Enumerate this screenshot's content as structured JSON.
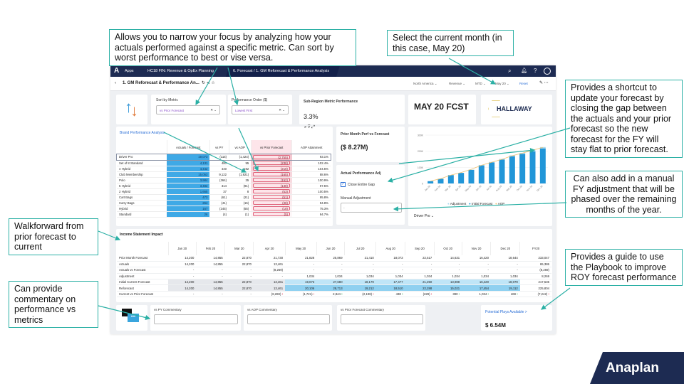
{
  "callouts": {
    "narrow_focus": "Allows you to narrow your focus by analyzing how your actuals performed against a specific metric. Can sort by worst performance to best or vise versa.",
    "current_month": "Select the current month (in this case, May 20)",
    "shortcut": "Provides a shortcut to update your forecast by closing the gap between the actuals and your prior forecast so the new forecast for the FY will stay flat to prior forecast.",
    "manual_adj": "Can also add in a manual FY adjustment that will be phased over the remaining months of the year.",
    "walkforward": "Walkforward from prior forecast to current",
    "commentary": "Can provide commentary on performance vs metrics",
    "playbook": "Provides a guide to use the Playbook to improve ROY forecast performance"
  },
  "nav": {
    "apps": "Apps",
    "model": "HC18 FIN: Revenue & OpEx Planning",
    "page": "6. Forecast / 1. GM Reforecast & Performance Analysis"
  },
  "header": {
    "title": "1. GM Reforecast & Performance An...",
    "filters": [
      "North America",
      "Revenue",
      "MTD",
      "May 20"
    ],
    "reset": "Reset"
  },
  "cards": {
    "sort_label": "Sort by Metric",
    "sort_value": "vs Prior Forecast",
    "order_label": "Performance Order ($)",
    "order_value": "Lowest First",
    "subregion_label": "Sub-Region Metric Performance",
    "subregion_value": "3.3%",
    "fcst": "MAY 20 FCST",
    "logo": "HALLAWAY",
    "prior_label": "Prior Month Perf vs Forecast",
    "prior_value": "($ 8.27M)",
    "adj_title": "Actual Performance Adj",
    "close_gap": "Close Entire Gap",
    "manual_label": "Manual Adjustment",
    "manual_value": "-",
    "driver": "Driver Pro"
  },
  "brand": {
    "title": "Brand Performance Analysis",
    "columns": [
      "Actuals / Forecast",
      "vs PY",
      "vs AOP",
      "vs Prior Forecast",
      "AOP Attainment"
    ],
    "rows": [
      [
        "Driver Pro",
        "19,073",
        "(115)",
        "(1,424)",
        "(2,755)",
        "93.1%"
      ],
      [
        "Set of 8 Standard",
        "4,131",
        "480",
        "95",
        "(238)",
        "102.4%"
      ],
      [
        "4 Hybrid",
        "4,442",
        "440",
        "192",
        "(218)",
        "104.5%"
      ],
      [
        "Club Membership",
        "15,053",
        "9,122",
        "(1,921)",
        "(165)",
        "88.6%"
      ],
      [
        "Polo",
        "3,984",
        "(364)",
        "35",
        "(152)",
        "100.9%"
      ],
      [
        "5 Hybrid",
        "3,482",
        "314",
        "(91)",
        "(138)",
        "97.5%"
      ],
      [
        "2 Hybrid",
        "1,665",
        "37",
        "8",
        "(53)",
        "100.5%"
      ],
      [
        "Cart Bags",
        "473",
        "(61)",
        "(21)",
        "(51)",
        "95.8%"
      ],
      [
        "Carry Bags",
        "264",
        "(41)",
        "(15)",
        "(38)",
        "94.8%"
      ],
      [
        "Hybrid",
        "167",
        "(245)",
        "(55)",
        "(18)",
        "75.3%"
      ],
      [
        "Standard",
        "26",
        "(4)",
        "(1)",
        "(5)",
        "94.7%"
      ]
    ]
  },
  "chart": {
    "type": "bar",
    "categories": [
      "Jan 20",
      "Feb 20",
      "Mar 20",
      "Apr 20",
      "May 20",
      "Jun 20",
      "Jul 20",
      "Aug 20",
      "Sep 20",
      "Oct 20",
      "Nov 20",
      "Dec 20"
    ],
    "ticks": [
      "300K",
      "200K",
      "100K",
      "0"
    ],
    "ylim": [
      0,
      300000
    ],
    "series": [
      {
        "name": "Initial Forecast",
        "values": [
          14200,
          29055,
          51925,
          65386,
          84459,
          112139,
          130318,
          147795,
          169045,
          183033,
          199453,
          217532
        ]
      },
      {
        "name": "Adjustment",
        "values": [
          0,
          0,
          0,
          0,
          1034,
          2068,
          3102,
          4136,
          5170,
          6204,
          7238,
          8270
        ]
      },
      {
        "name": "AOP",
        "values": [
          15000,
          30000,
          52000,
          68000,
          88000,
          113000,
          132000,
          150000,
          172000,
          188000,
          206000,
          224000
        ]
      }
    ],
    "legend": [
      "Adjustment",
      "Initial Forecast",
      "AOP"
    ],
    "colors": {
      "initial": "#2196d8",
      "adjustment": "#a9d8ee",
      "aop": "#f0c270"
    }
  },
  "income": {
    "title": "Income Statement Impact",
    "columns": [
      "Jan 20",
      "Feb 20",
      "Mar 20",
      "Apr 20",
      "May 20",
      "Jun 20",
      "Jul 20",
      "Aug 20",
      "Sep 20",
      "Oct 20",
      "Nov 20",
      "Dec 20",
      "FY20"
    ],
    "rows": [
      {
        "label": "Prior Month Forecast",
        "values": [
          "14,200",
          "14,855",
          "22,870",
          "21,730",
          "21,828",
          "25,869",
          "21,410",
          "18,073",
          "22,517",
          "14,631",
          "16,420",
          "18,644",
          "233,047"
        ]
      },
      {
        "label": "Actuals",
        "values": [
          "14,200",
          "14,855",
          "22,870",
          "13,461",
          "-",
          "-",
          "-",
          "-",
          "-",
          "-",
          "-",
          "-",
          "65,386"
        ]
      },
      {
        "label": "Actuals vs Forecast",
        "values": [
          "-",
          "-",
          "-",
          "(8,269)",
          "-",
          "-",
          "-",
          "-",
          "-",
          "-",
          "-",
          "-",
          "(8,269)"
        ]
      },
      {
        "label": "Adjustment",
        "values": [
          "-",
          "-",
          "-",
          "-",
          "1,034",
          "1,034",
          "1,034",
          "1,034",
          "1,034",
          "1,034",
          "1,034",
          "1,034",
          "8,269"
        ]
      },
      {
        "label": "Initial Current Forecast",
        "values": [
          "14,200",
          "14,855",
          "22,870",
          "13,461",
          "19,073",
          "27,680",
          "18,179",
          "17,477",
          "21,250",
          "13,988",
          "16,420",
          "18,079",
          "217,535"
        ]
      },
      {
        "label": "Reforecast",
        "values": [
          "14,200",
          "14,855",
          "22,870",
          "13,461",
          "20,106",
          "28,713",
          "19,212",
          "18,510",
          "22,288",
          "15,021",
          "17,454",
          "19,112",
          "225,804"
        ]
      },
      {
        "label": "Current vs Prior Forecast",
        "values": [
          "-",
          "-",
          "-",
          "(8,269)",
          "(1,721)",
          "2,844",
          "(2,198)",
          "438",
          "(229)",
          "390",
          "1,034",
          "469",
          "(7,242)"
        ],
        "status": [
          "",
          "",
          "",
          "red",
          "red",
          "green",
          "red",
          "green",
          "red",
          "green",
          "green",
          "green",
          "red"
        ]
      }
    ]
  },
  "commentary": {
    "py": "vs PY Commentary",
    "aop": "vs AOP Commentary",
    "prior": "vs Prior Forecast Commentary",
    "plays": "Potential Plays Available >",
    "plays_value": "$ 6.54M"
  },
  "brand_logo": "Anaplan",
  "colors": {
    "accent": "#2bb0a5",
    "nav": "#1d2b52",
    "logo_bg": "#1d2b52"
  }
}
